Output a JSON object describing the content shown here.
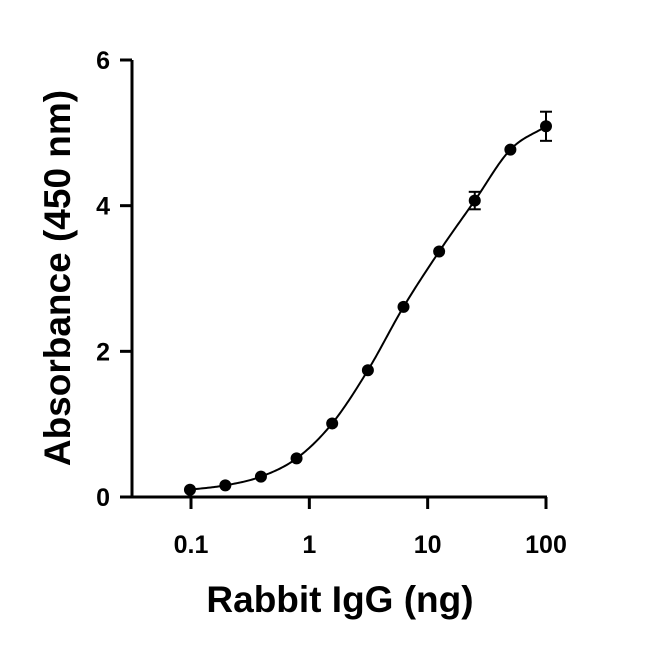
{
  "chart_data": {
    "type": "scatter",
    "xlabel": "Rabbit IgG (ng)",
    "ylabel": "Absorbance (450 nm)",
    "xscale": "log",
    "xlim": [
      0.05,
      100
    ],
    "ylim": [
      0,
      6
    ],
    "xticks": [
      0.1,
      1,
      10,
      100
    ],
    "xtick_labels": [
      "0.1",
      "1",
      "10",
      "100"
    ],
    "yticks": [
      0,
      2,
      4,
      6
    ],
    "ytick_labels": [
      "0",
      "2",
      "4",
      "6"
    ],
    "grid": false,
    "legend": "none",
    "series": [
      {
        "x": [
          0.098,
          0.195,
          0.39,
          0.78,
          1.56,
          3.125,
          6.25,
          12.5,
          25,
          50,
          100
        ],
        "y": [
          0.1,
          0.16,
          0.28,
          0.53,
          1.01,
          1.74,
          2.61,
          3.37,
          4.07,
          4.77,
          5.09
        ],
        "error": [
          0,
          0,
          0,
          0,
          0,
          0,
          0,
          0,
          0.12,
          0,
          0.2
        ],
        "fit": "4PL",
        "color": "#000000"
      }
    ]
  }
}
